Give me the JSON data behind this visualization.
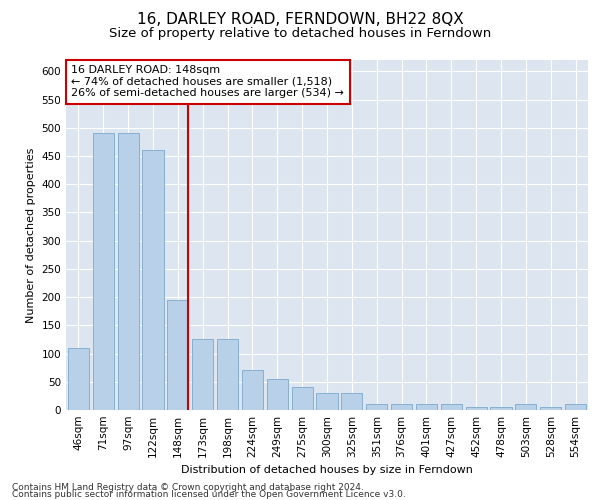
{
  "title": "16, DARLEY ROAD, FERNDOWN, BH22 8QX",
  "subtitle": "Size of property relative to detached houses in Ferndown",
  "xlabel": "Distribution of detached houses by size in Ferndown",
  "ylabel": "Number of detached properties",
  "categories": [
    "46sqm",
    "71sqm",
    "97sqm",
    "122sqm",
    "148sqm",
    "173sqm",
    "198sqm",
    "224sqm",
    "249sqm",
    "275sqm",
    "300sqm",
    "325sqm",
    "351sqm",
    "376sqm",
    "401sqm",
    "427sqm",
    "452sqm",
    "478sqm",
    "503sqm",
    "528sqm",
    "554sqm"
  ],
  "values": [
    110,
    490,
    490,
    460,
    195,
    125,
    125,
    70,
    55,
    40,
    30,
    30,
    10,
    10,
    10,
    10,
    5,
    5,
    10,
    5,
    10
  ],
  "bar_color": "#b8d0e8",
  "bar_edge_color": "#6a9fc8",
  "highlight_index": 4,
  "highlight_line_color": "#cc0000",
  "annotation_line1": "16 DARLEY ROAD: 148sqm",
  "annotation_line2": "← 74% of detached houses are smaller (1,518)",
  "annotation_line3": "26% of semi-detached houses are larger (534) →",
  "annotation_box_color": "#ffffff",
  "annotation_box_edge_color": "#cc0000",
  "ylim": [
    0,
    620
  ],
  "yticks": [
    0,
    50,
    100,
    150,
    200,
    250,
    300,
    350,
    400,
    450,
    500,
    550,
    600
  ],
  "background_color": "#dde6f0",
  "footer_line1": "Contains HM Land Registry data © Crown copyright and database right 2024.",
  "footer_line2": "Contains public sector information licensed under the Open Government Licence v3.0.",
  "title_fontsize": 11,
  "subtitle_fontsize": 9.5,
  "axis_label_fontsize": 8,
  "tick_fontsize": 7.5,
  "annotation_fontsize": 8,
  "footer_fontsize": 6.5
}
